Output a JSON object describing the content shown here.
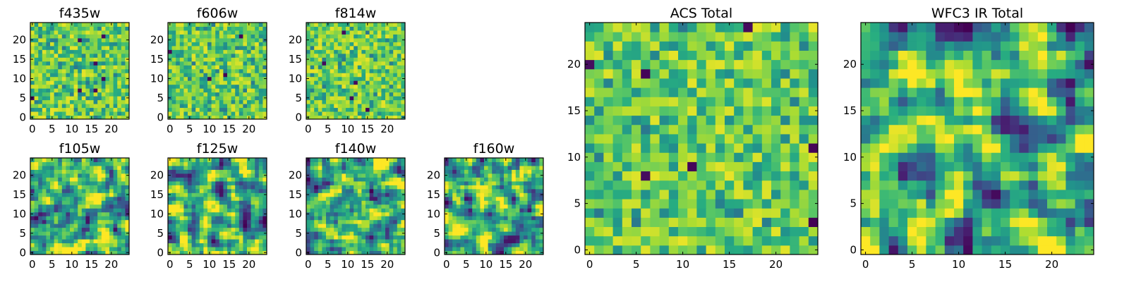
{
  "chart_data": [
    {
      "type": "heatmap",
      "title": "f435w",
      "xticks": [
        "0",
        "5",
        "10",
        "15",
        "20"
      ],
      "yticks": [
        "0",
        "5",
        "10",
        "15",
        "20"
      ],
      "xlim": [
        0,
        25
      ],
      "ylim": [
        0,
        25
      ],
      "colormap": "viridis"
    },
    {
      "type": "heatmap",
      "title": "f606w",
      "xticks": [
        "0",
        "5",
        "10",
        "15",
        "20"
      ],
      "yticks": [
        "0",
        "5",
        "10",
        "15",
        "20"
      ],
      "xlim": [
        0,
        25
      ],
      "ylim": [
        0,
        25
      ],
      "colormap": "viridis"
    },
    {
      "type": "heatmap",
      "title": "f814w",
      "xticks": [
        "0",
        "5",
        "10",
        "15",
        "20"
      ],
      "yticks": [
        "0",
        "5",
        "10",
        "15",
        "20"
      ],
      "xlim": [
        0,
        25
      ],
      "ylim": [
        0,
        25
      ],
      "colormap": "viridis"
    },
    {
      "type": "heatmap",
      "title": "f105w",
      "xticks": [
        "0",
        "5",
        "10",
        "15",
        "20"
      ],
      "yticks": [
        "0",
        "5",
        "10",
        "15",
        "20"
      ],
      "xlim": [
        0,
        25
      ],
      "ylim": [
        0,
        25
      ],
      "colormap": "viridis"
    },
    {
      "type": "heatmap",
      "title": "f125w",
      "xticks": [
        "0",
        "5",
        "10",
        "15",
        "20"
      ],
      "yticks": [
        "0",
        "5",
        "10",
        "15",
        "20"
      ],
      "xlim": [
        0,
        25
      ],
      "ylim": [
        0,
        25
      ],
      "colormap": "viridis"
    },
    {
      "type": "heatmap",
      "title": "f140w",
      "xticks": [
        "0",
        "5",
        "10",
        "15",
        "20"
      ],
      "yticks": [
        "0",
        "5",
        "10",
        "15",
        "20"
      ],
      "xlim": [
        0,
        25
      ],
      "ylim": [
        0,
        25
      ],
      "colormap": "viridis"
    },
    {
      "type": "heatmap",
      "title": "f160w",
      "xticks": [
        "0",
        "5",
        "10",
        "15",
        "20"
      ],
      "yticks": [
        "0",
        "5",
        "10",
        "15",
        "20"
      ],
      "xlim": [
        0,
        25
      ],
      "ylim": [
        0,
        25
      ],
      "colormap": "viridis"
    },
    {
      "type": "heatmap",
      "title": "ACS Total",
      "xticks": [
        "0",
        "5",
        "10",
        "15",
        "20"
      ],
      "yticks": [
        "0",
        "5",
        "10",
        "15",
        "20"
      ],
      "xlim": [
        0,
        25
      ],
      "ylim": [
        0,
        25
      ],
      "colormap": "viridis"
    },
    {
      "type": "heatmap",
      "title": "WFC3 IR Total",
      "xticks": [
        "0",
        "5",
        "10",
        "15",
        "20"
      ],
      "yticks": [
        "0",
        "5",
        "10",
        "15",
        "20"
      ],
      "xlim": [
        0,
        25
      ],
      "ylim": [
        0,
        25
      ],
      "colormap": "viridis"
    }
  ]
}
